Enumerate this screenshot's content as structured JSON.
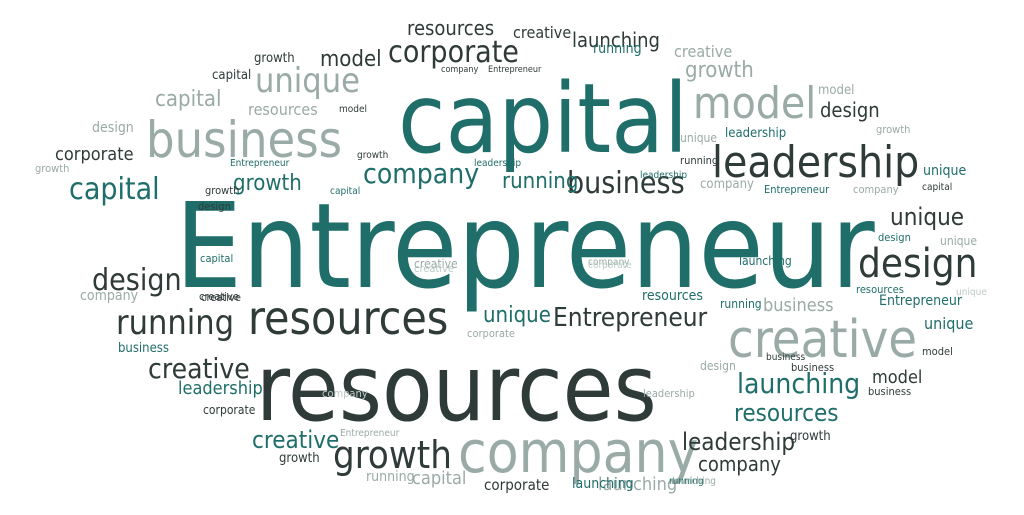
{
  "colors": {
    "teal": "#1f6e6a",
    "dark": "#2f3b39",
    "gray": "#9aaba7",
    "light": "#bccbc7"
  },
  "words": [
    {
      "text": "Entrepreneur",
      "color": "teal"
    },
    {
      "text": "capital",
      "color": "teal"
    },
    {
      "text": "resources",
      "color": "dark"
    },
    {
      "text": "business",
      "color": "gray"
    },
    {
      "text": "model",
      "color": "gray"
    },
    {
      "text": "leadership",
      "color": "dark"
    },
    {
      "text": "creative",
      "color": "gray"
    },
    {
      "text": "company",
      "color": "gray"
    },
    {
      "text": "resources",
      "color": "dark"
    },
    {
      "text": "corporate",
      "color": "dark"
    },
    {
      "text": "unique",
      "color": "gray"
    },
    {
      "text": "design",
      "color": "dark"
    },
    {
      "text": "running",
      "color": "dark"
    },
    {
      "text": "business",
      "color": "dark"
    },
    {
      "text": "launching",
      "color": "teal"
    },
    {
      "text": "growth",
      "color": "dark"
    },
    {
      "text": "capital",
      "color": "teal"
    },
    {
      "text": "Entrepreneur",
      "color": "dark"
    },
    {
      "text": "company",
      "color": "teal"
    },
    {
      "text": "unique",
      "color": "dark"
    },
    {
      "text": "design",
      "color": "dark"
    },
    {
      "text": "resources",
      "color": "teal"
    },
    {
      "text": "creative",
      "color": "dark"
    },
    {
      "text": "leadership",
      "color": "dark"
    },
    {
      "text": "model",
      "color": "dark"
    },
    {
      "text": "creative",
      "color": "teal"
    },
    {
      "text": "growth",
      "color": "teal"
    },
    {
      "text": "growth",
      "color": "gray"
    },
    {
      "text": "capital",
      "color": "gray"
    },
    {
      "text": "company",
      "color": "dark"
    },
    {
      "text": "resources",
      "color": "dark"
    },
    {
      "text": "launching",
      "color": "dark"
    },
    {
      "text": "corporate",
      "color": "dark"
    },
    {
      "text": "running",
      "color": "teal"
    },
    {
      "text": "unique",
      "color": "teal"
    },
    {
      "text": "creative",
      "color": "gray"
    },
    {
      "text": "design",
      "color": "gray"
    },
    {
      "text": "resources",
      "color": "gray"
    },
    {
      "text": "leadership",
      "color": "teal"
    },
    {
      "text": "launching",
      "color": "gray"
    },
    {
      "text": "creative",
      "color": "dark"
    },
    {
      "text": "model",
      "color": "dark"
    },
    {
      "text": "capital",
      "color": "dark"
    },
    {
      "text": "capital",
      "color": "gray"
    },
    {
      "text": "design",
      "color": "dark"
    },
    {
      "text": "unique",
      "color": "teal"
    },
    {
      "text": "design",
      "color": "gray"
    },
    {
      "text": "capital",
      "color": "teal"
    },
    {
      "text": "business",
      "color": "gray"
    },
    {
      "text": "company",
      "color": "gray"
    },
    {
      "text": "creative",
      "color": "gray"
    },
    {
      "text": "growth",
      "color": "dark"
    },
    {
      "text": "model",
      "color": "gray"
    },
    {
      "text": "unique",
      "color": "teal"
    },
    {
      "text": "Entrepreneur",
      "color": "teal"
    },
    {
      "text": "resources",
      "color": "teal"
    },
    {
      "text": "growth",
      "color": "dark"
    },
    {
      "text": "capital",
      "color": "teal"
    },
    {
      "text": "business",
      "color": "teal"
    },
    {
      "text": "leadership",
      "color": "teal"
    },
    {
      "text": "corporate",
      "color": "gray"
    },
    {
      "text": "Entrepreneur",
      "color": "teal"
    },
    {
      "text": "company",
      "color": "gray"
    },
    {
      "text": "running",
      "color": "teal"
    },
    {
      "text": "business",
      "color": "dark"
    },
    {
      "text": "design",
      "color": "dark"
    },
    {
      "text": "model",
      "color": "dark"
    },
    {
      "text": "creative",
      "color": "dark"
    },
    {
      "text": "launching",
      "color": "teal"
    },
    {
      "text": "corporate",
      "color": "dark"
    },
    {
      "text": "company",
      "color": "dark"
    },
    {
      "text": "Entrepreneur",
      "color": "dark"
    },
    {
      "text": "running",
      "color": "dark"
    },
    {
      "text": "growth",
      "color": "dark"
    },
    {
      "text": "leadership",
      "color": "teal"
    },
    {
      "text": "unique",
      "color": "gray"
    },
    {
      "text": "Entrepreneur",
      "color": "teal"
    },
    {
      "text": "company",
      "color": "gray"
    },
    {
      "text": "growth",
      "color": "gray"
    },
    {
      "text": "unique",
      "color": "teal"
    },
    {
      "text": "capital",
      "color": "dark"
    },
    {
      "text": "design",
      "color": "teal"
    },
    {
      "text": "company",
      "color": "gray"
    },
    {
      "text": "running",
      "color": "teal"
    },
    {
      "text": "launching",
      "color": "teal"
    },
    {
      "text": "corporate",
      "color": "gray"
    },
    {
      "text": "creative",
      "color": "light"
    },
    {
      "text": "capital",
      "color": "teal"
    },
    {
      "text": "leadership",
      "color": "gray"
    },
    {
      "text": "business",
      "color": "dark"
    },
    {
      "text": "resources",
      "color": "teal"
    },
    {
      "text": "Entrepreneur",
      "color": "teal"
    },
    {
      "text": "unique",
      "color": "light"
    },
    {
      "text": "company",
      "color": "light"
    },
    {
      "text": "creative",
      "color": "light"
    },
    {
      "text": "corporate",
      "color": "light"
    },
    {
      "text": "growth",
      "color": "dark"
    },
    {
      "text": "running",
      "color": "gray"
    },
    {
      "text": "unique",
      "color": "gray"
    },
    {
      "text": "launching",
      "color": "gray"
    },
    {
      "text": "corporate",
      "color": "dark"
    },
    {
      "text": "Entrepreneur",
      "color": "gray"
    },
    {
      "text": "company",
      "color": "gray"
    },
    {
      "text": "creative",
      "color": "dark"
    },
    {
      "text": "design",
      "color": "dark"
    },
    {
      "text": "corporate",
      "color": "dark"
    },
    {
      "text": "company",
      "color": "light"
    },
    {
      "text": "leadership",
      "color": "teal"
    },
    {
      "text": "growth",
      "color": "dark"
    },
    {
      "text": "business",
      "color": "dark"
    },
    {
      "text": "model",
      "color": "dark"
    },
    {
      "text": "running",
      "color": "teal"
    },
    {
      "text": "growth",
      "color": "gray"
    },
    {
      "text": "capital",
      "color": "light"
    },
    {
      "text": "running",
      "color": "gray"
    }
  ]
}
